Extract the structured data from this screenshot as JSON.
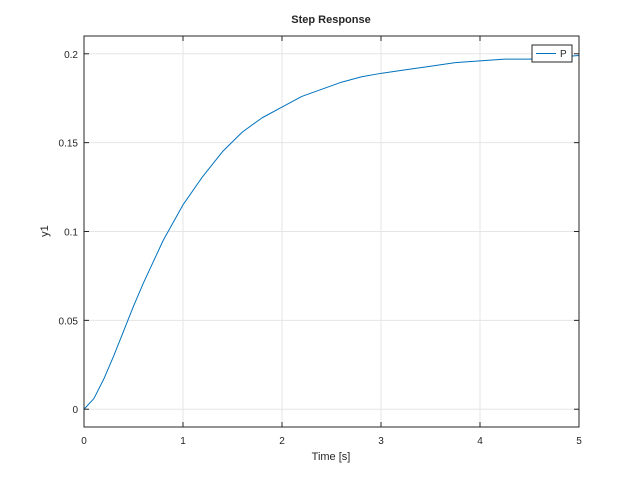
{
  "chart_data": {
    "type": "line",
    "title": "Step Response",
    "xlabel": "Time [s]",
    "ylabel": "y1",
    "xlim": [
      0,
      5
    ],
    "ylim": [
      -0.01,
      0.21
    ],
    "xticks": [
      0,
      1,
      2,
      3,
      4,
      5
    ],
    "xtick_labels": [
      "0",
      "1",
      "2",
      "3",
      "4",
      "5"
    ],
    "yticks": [
      0,
      0.05,
      0.1,
      0.15,
      0.2
    ],
    "ytick_labels": [
      "0",
      "0.05",
      "0.1",
      "0.15",
      "0.2"
    ],
    "grid": true,
    "legend_position": "top-right",
    "series": [
      {
        "name": "P",
        "color": "#0072bd",
        "x": [
          0,
          0.1,
          0.2,
          0.3,
          0.4,
          0.5,
          0.6,
          0.7,
          0.8,
          0.9,
          1.0,
          1.2,
          1.4,
          1.6,
          1.8,
          2.0,
          2.2,
          2.4,
          2.6,
          2.8,
          3.0,
          3.25,
          3.5,
          3.75,
          4.0,
          4.25,
          4.5,
          4.75,
          5.0
        ],
        "y": [
          0,
          0.006,
          0.017,
          0.03,
          0.044,
          0.058,
          0.071,
          0.083,
          0.095,
          0.105,
          0.115,
          0.131,
          0.145,
          0.156,
          0.164,
          0.17,
          0.176,
          0.18,
          0.184,
          0.187,
          0.189,
          0.191,
          0.193,
          0.195,
          0.196,
          0.197,
          0.197,
          0.198,
          0.199
        ]
      }
    ]
  }
}
